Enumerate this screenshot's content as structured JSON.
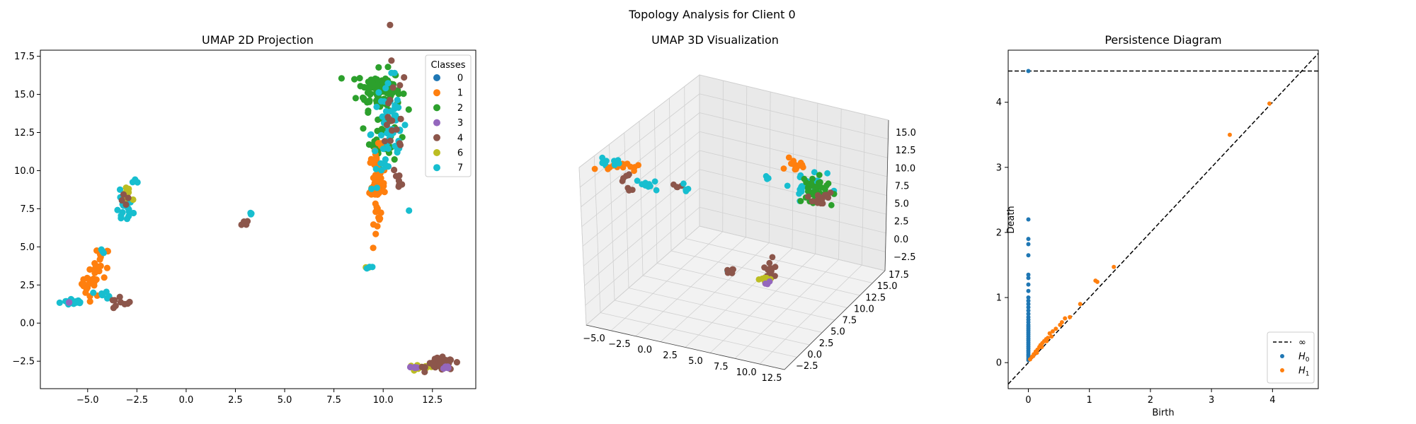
{
  "figure": {
    "suptitle": "Topology Analysis for Client 0"
  },
  "colors": {
    "c0": "#1f77b4",
    "c1": "#ff7f0e",
    "c2": "#2ca02c",
    "c3": "#9467bd",
    "c4": "#8c564b",
    "c6": "#bcbd22",
    "c7": "#17becf"
  },
  "chart_data": [
    {
      "type": "scatter",
      "title": "UMAP 2D Projection",
      "xlabel": "",
      "ylabel": "",
      "xlim": [
        -7.4,
        14.7
      ],
      "ylim": [
        -4.3,
        17.9
      ],
      "xticks": [
        "−5.0",
        "−2.5",
        "0.0",
        "2.5",
        "5.0",
        "7.5",
        "10.0",
        "12.5"
      ],
      "xtick_values": [
        -5,
        -2.5,
        0,
        2.5,
        5,
        7.5,
        10,
        12.5
      ],
      "yticks": [
        "−2.5",
        "0.0",
        "2.5",
        "5.0",
        "7.5",
        "10.0",
        "12.5",
        "15.0",
        "17.5"
      ],
      "ytick_values": [
        -2.5,
        0,
        2.5,
        5,
        7.5,
        10,
        12.5,
        15,
        17.5
      ],
      "legend": {
        "title": "Classes",
        "placement": "top-right",
        "entries": [
          "0",
          "1",
          "2",
          "3",
          "4",
          "6",
          "7"
        ]
      },
      "clusters": [
        {
          "class": "7",
          "cx": -5.7,
          "cy": 1.4,
          "sx": 0.35,
          "sy": 0.12,
          "n": 14
        },
        {
          "class": "3",
          "cx": -6.0,
          "cy": 1.3,
          "sx": 0.05,
          "sy": 0.05,
          "n": 2
        },
        {
          "class": "1",
          "cx": -4.8,
          "cy": 2.6,
          "sx": 0.25,
          "sy": 0.45,
          "n": 22
        },
        {
          "class": "1",
          "cx": -4.3,
          "cy": 4.0,
          "sx": 0.2,
          "sy": 0.5,
          "n": 14
        },
        {
          "class": "7",
          "cx": -4.2,
          "cy": 4.7,
          "sx": 0.05,
          "sy": 0.1,
          "n": 3
        },
        {
          "class": "7",
          "cx": -4.5,
          "cy": 1.9,
          "sx": 0.3,
          "sy": 0.1,
          "n": 4
        },
        {
          "class": "7",
          "cx": -4.0,
          "cy": 1.7,
          "sx": 0.1,
          "sy": 0.05,
          "n": 3
        },
        {
          "class": "4",
          "cx": -3.4,
          "cy": 1.3,
          "sx": 0.3,
          "sy": 0.25,
          "n": 9
        },
        {
          "class": "7",
          "cx": -3.2,
          "cy": 7.5,
          "sx": 0.25,
          "sy": 0.5,
          "n": 18
        },
        {
          "class": "6",
          "cx": -2.9,
          "cy": 8.3,
          "sx": 0.2,
          "sy": 0.3,
          "n": 7
        },
        {
          "class": "4",
          "cx": -3.0,
          "cy": 8.0,
          "sx": 0.15,
          "sy": 0.2,
          "n": 4
        },
        {
          "class": "7",
          "cx": -2.6,
          "cy": 9.3,
          "sx": 0.1,
          "sy": 0.08,
          "n": 4
        },
        {
          "class": "4",
          "cx": 3.0,
          "cy": 6.6,
          "sx": 0.1,
          "sy": 0.1,
          "n": 4
        },
        {
          "class": "7",
          "cx": 3.3,
          "cy": 7.2,
          "sx": 0.05,
          "sy": 0.05,
          "n": 3
        },
        {
          "class": "6",
          "cx": 9.2,
          "cy": 3.6,
          "sx": 0.05,
          "sy": 0.05,
          "n": 2
        },
        {
          "class": "7",
          "cx": 9.3,
          "cy": 3.7,
          "sx": 0.08,
          "sy": 0.08,
          "n": 3
        },
        {
          "class": "2",
          "cx": 9.8,
          "cy": 15.3,
          "sx": 0.55,
          "sy": 0.65,
          "n": 95
        },
        {
          "class": "2",
          "cx": 10.0,
          "cy": 12.5,
          "sx": 0.35,
          "sy": 1.1,
          "n": 40
        },
        {
          "class": "1",
          "cx": 9.7,
          "cy": 9.0,
          "sx": 0.2,
          "sy": 1.2,
          "n": 60
        },
        {
          "class": "7",
          "cx": 10.3,
          "cy": 12.5,
          "sx": 0.45,
          "sy": 2.0,
          "n": 55
        },
        {
          "class": "4",
          "cx": 10.5,
          "cy": 13.0,
          "sx": 0.35,
          "sy": 2.0,
          "n": 20
        },
        {
          "class": "4",
          "cx": 10.8,
          "cy": 9.2,
          "sx": 0.15,
          "sy": 0.3,
          "n": 5
        },
        {
          "class": "6",
          "cx": 11.9,
          "cy": -2.95,
          "sx": 0.35,
          "sy": 0.1,
          "n": 14
        },
        {
          "class": "3",
          "cx": 11.6,
          "cy": -2.9,
          "sx": 0.15,
          "sy": 0.05,
          "n": 4
        },
        {
          "class": "4",
          "cx": 12.9,
          "cy": -2.7,
          "sx": 0.35,
          "sy": 0.2,
          "n": 45
        },
        {
          "class": "3",
          "cx": 13.3,
          "cy": -2.9,
          "sx": 0.15,
          "sy": 0.08,
          "n": 4
        }
      ]
    },
    {
      "type": "scatter",
      "title": "UMAP 3D Visualization",
      "xlabel": "",
      "ylabel": "",
      "zlabel": "",
      "xticks": [
        "−5.0",
        "−2.5",
        "0.0",
        "2.5",
        "5.0",
        "7.5",
        "10.0",
        "12.5"
      ],
      "yticks": [
        "−2.5",
        "0.0",
        "2.5",
        "5.0",
        "7.5",
        "10.0",
        "12.5",
        "15.0",
        "17.5"
      ],
      "zticks": [
        "−2.5",
        "0.0",
        "2.5",
        "5.0",
        "7.5",
        "10.0",
        "12.5",
        "15.0"
      ],
      "grid": true
    },
    {
      "type": "scatter",
      "title": "Persistence Diagram",
      "xlabel": "Birth",
      "ylabel": "Death",
      "xlim": [
        -0.33,
        4.75
      ],
      "ylim": [
        -0.4,
        4.8
      ],
      "xticks": [
        "0",
        "1",
        "2",
        "3",
        "4"
      ],
      "xtick_values": [
        0,
        1,
        2,
        3,
        4
      ],
      "yticks": [
        "0",
        "1",
        "2",
        "3",
        "4"
      ],
      "ytick_values": [
        0,
        1,
        2,
        3,
        4
      ],
      "infinity_level": 4.48,
      "legend": {
        "placement": "lower-right",
        "entries": [
          {
            "label": "∞",
            "kind": "line"
          },
          {
            "label": "H",
            "sub": "0",
            "kind": "point",
            "color": "#1f77b4"
          },
          {
            "label": "H",
            "sub": "1",
            "kind": "point",
            "color": "#ff7f0e"
          }
        ]
      },
      "series": [
        {
          "name": "H0",
          "points": [
            [
              0,
              4.48
            ],
            [
              0,
              2.2
            ],
            [
              0,
              1.9
            ],
            [
              0,
              1.82
            ],
            [
              0,
              1.65
            ],
            [
              0,
              1.35
            ],
            [
              0,
              1.3
            ],
            [
              0,
              1.2
            ],
            [
              0,
              1.1
            ],
            [
              0,
              1.0
            ],
            [
              0,
              0.95
            ],
            [
              0,
              0.9
            ],
            [
              0,
              0.85
            ],
            [
              0,
              0.8
            ],
            [
              0,
              0.75
            ],
            [
              0,
              0.7
            ],
            [
              0,
              0.66
            ],
            [
              0,
              0.62
            ],
            [
              0,
              0.58
            ],
            [
              0,
              0.55
            ],
            [
              0,
              0.52
            ],
            [
              0,
              0.49
            ],
            [
              0,
              0.46
            ],
            [
              0,
              0.43
            ],
            [
              0,
              0.4
            ],
            [
              0,
              0.37
            ],
            [
              0,
              0.34
            ],
            [
              0,
              0.31
            ],
            [
              0,
              0.28
            ],
            [
              0,
              0.25
            ],
            [
              0,
              0.22
            ],
            [
              0,
              0.19
            ],
            [
              0,
              0.16
            ],
            [
              0,
              0.13
            ],
            [
              0,
              0.1
            ],
            [
              0,
              0.07
            ],
            [
              0,
              0.04
            ]
          ]
        },
        {
          "name": "H1",
          "points": [
            [
              0.03,
              0.05
            ],
            [
              0.06,
              0.09
            ],
            [
              0.09,
              0.13
            ],
            [
              0.12,
              0.17
            ],
            [
              0.15,
              0.2
            ],
            [
              0.18,
              0.24
            ],
            [
              0.2,
              0.27
            ],
            [
              0.23,
              0.3
            ],
            [
              0.26,
              0.33
            ],
            [
              0.29,
              0.36
            ],
            [
              0.32,
              0.38
            ],
            [
              0.35,
              0.45
            ],
            [
              0.4,
              0.48
            ],
            [
              0.45,
              0.52
            ],
            [
              0.52,
              0.58
            ],
            [
              0.55,
              0.62
            ],
            [
              0.6,
              0.68
            ],
            [
              0.68,
              0.7
            ],
            [
              0.85,
              0.9
            ],
            [
              1.1,
              1.26
            ],
            [
              1.13,
              1.24
            ],
            [
              1.4,
              1.47
            ],
            [
              3.3,
              3.5
            ],
            [
              3.95,
              3.98
            ],
            [
              0.08,
              0.1
            ],
            [
              0.14,
              0.15
            ],
            [
              0.22,
              0.24
            ],
            [
              0.3,
              0.33
            ],
            [
              0.38,
              0.4
            ]
          ]
        }
      ]
    }
  ]
}
